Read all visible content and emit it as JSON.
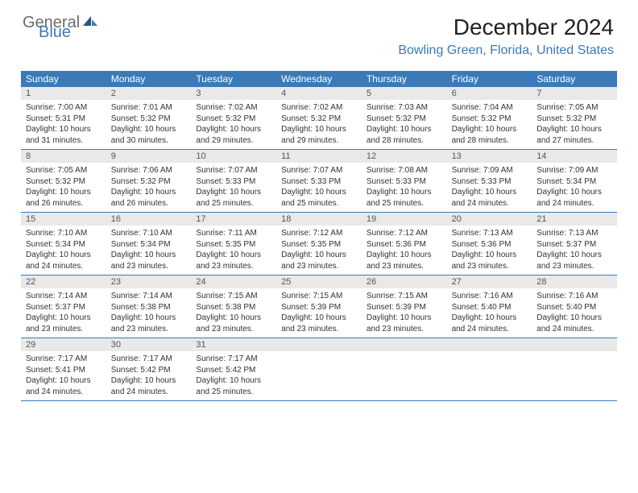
{
  "logo": {
    "part1": "General",
    "part2": "Blue"
  },
  "title": "December 2024",
  "location": "Bowling Green, Florida, United States",
  "colors": {
    "header_bg": "#3a7ab8",
    "header_text": "#ffffff",
    "daynum_bg": "#e9e9e9",
    "border": "#3a7ab8",
    "logo_gray": "#6b6b6b",
    "logo_blue": "#3a7ab8"
  },
  "day_names": [
    "Sunday",
    "Monday",
    "Tuesday",
    "Wednesday",
    "Thursday",
    "Friday",
    "Saturday"
  ],
  "weeks": [
    [
      {
        "n": "1",
        "sr": "7:00 AM",
        "ss": "5:31 PM",
        "dl": "10 hours and 31 minutes."
      },
      {
        "n": "2",
        "sr": "7:01 AM",
        "ss": "5:32 PM",
        "dl": "10 hours and 30 minutes."
      },
      {
        "n": "3",
        "sr": "7:02 AM",
        "ss": "5:32 PM",
        "dl": "10 hours and 29 minutes."
      },
      {
        "n": "4",
        "sr": "7:02 AM",
        "ss": "5:32 PM",
        "dl": "10 hours and 29 minutes."
      },
      {
        "n": "5",
        "sr": "7:03 AM",
        "ss": "5:32 PM",
        "dl": "10 hours and 28 minutes."
      },
      {
        "n": "6",
        "sr": "7:04 AM",
        "ss": "5:32 PM",
        "dl": "10 hours and 28 minutes."
      },
      {
        "n": "7",
        "sr": "7:05 AM",
        "ss": "5:32 PM",
        "dl": "10 hours and 27 minutes."
      }
    ],
    [
      {
        "n": "8",
        "sr": "7:05 AM",
        "ss": "5:32 PM",
        "dl": "10 hours and 26 minutes."
      },
      {
        "n": "9",
        "sr": "7:06 AM",
        "ss": "5:32 PM",
        "dl": "10 hours and 26 minutes."
      },
      {
        "n": "10",
        "sr": "7:07 AM",
        "ss": "5:33 PM",
        "dl": "10 hours and 25 minutes."
      },
      {
        "n": "11",
        "sr": "7:07 AM",
        "ss": "5:33 PM",
        "dl": "10 hours and 25 minutes."
      },
      {
        "n": "12",
        "sr": "7:08 AM",
        "ss": "5:33 PM",
        "dl": "10 hours and 25 minutes."
      },
      {
        "n": "13",
        "sr": "7:09 AM",
        "ss": "5:33 PM",
        "dl": "10 hours and 24 minutes."
      },
      {
        "n": "14",
        "sr": "7:09 AM",
        "ss": "5:34 PM",
        "dl": "10 hours and 24 minutes."
      }
    ],
    [
      {
        "n": "15",
        "sr": "7:10 AM",
        "ss": "5:34 PM",
        "dl": "10 hours and 24 minutes."
      },
      {
        "n": "16",
        "sr": "7:10 AM",
        "ss": "5:34 PM",
        "dl": "10 hours and 23 minutes."
      },
      {
        "n": "17",
        "sr": "7:11 AM",
        "ss": "5:35 PM",
        "dl": "10 hours and 23 minutes."
      },
      {
        "n": "18",
        "sr": "7:12 AM",
        "ss": "5:35 PM",
        "dl": "10 hours and 23 minutes."
      },
      {
        "n": "19",
        "sr": "7:12 AM",
        "ss": "5:36 PM",
        "dl": "10 hours and 23 minutes."
      },
      {
        "n": "20",
        "sr": "7:13 AM",
        "ss": "5:36 PM",
        "dl": "10 hours and 23 minutes."
      },
      {
        "n": "21",
        "sr": "7:13 AM",
        "ss": "5:37 PM",
        "dl": "10 hours and 23 minutes."
      }
    ],
    [
      {
        "n": "22",
        "sr": "7:14 AM",
        "ss": "5:37 PM",
        "dl": "10 hours and 23 minutes."
      },
      {
        "n": "23",
        "sr": "7:14 AM",
        "ss": "5:38 PM",
        "dl": "10 hours and 23 minutes."
      },
      {
        "n": "24",
        "sr": "7:15 AM",
        "ss": "5:38 PM",
        "dl": "10 hours and 23 minutes."
      },
      {
        "n": "25",
        "sr": "7:15 AM",
        "ss": "5:39 PM",
        "dl": "10 hours and 23 minutes."
      },
      {
        "n": "26",
        "sr": "7:15 AM",
        "ss": "5:39 PM",
        "dl": "10 hours and 23 minutes."
      },
      {
        "n": "27",
        "sr": "7:16 AM",
        "ss": "5:40 PM",
        "dl": "10 hours and 24 minutes."
      },
      {
        "n": "28",
        "sr": "7:16 AM",
        "ss": "5:40 PM",
        "dl": "10 hours and 24 minutes."
      }
    ],
    [
      {
        "n": "29",
        "sr": "7:17 AM",
        "ss": "5:41 PM",
        "dl": "10 hours and 24 minutes."
      },
      {
        "n": "30",
        "sr": "7:17 AM",
        "ss": "5:42 PM",
        "dl": "10 hours and 24 minutes."
      },
      {
        "n": "31",
        "sr": "7:17 AM",
        "ss": "5:42 PM",
        "dl": "10 hours and 25 minutes."
      },
      null,
      null,
      null,
      null
    ]
  ],
  "labels": {
    "sunrise": "Sunrise: ",
    "sunset": "Sunset: ",
    "daylight": "Daylight: "
  }
}
